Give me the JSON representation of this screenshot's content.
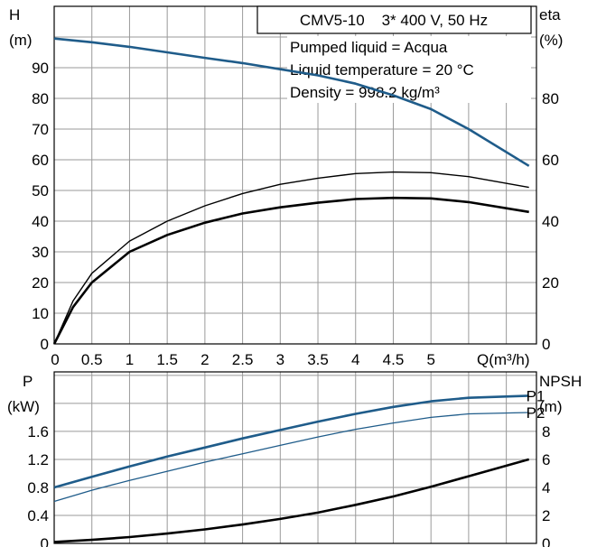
{
  "chart_data": [
    {
      "type": "line",
      "title": "CMV5-10    3* 400 V, 50 Hz",
      "info": [
        "Pumped liquid = Acqua",
        "Liquid temperature = 20 °C",
        "Density = 998.2 kg/m³"
      ],
      "xlabel": "Q(m³/h)",
      "ylabel_left": [
        "H",
        "(m)"
      ],
      "ylabel_right": [
        "eta",
        "(%)"
      ],
      "xlim": [
        0,
        6.4
      ],
      "ylim": [
        0,
        110
      ],
      "ylim_right": [
        0,
        110
      ],
      "x_ticks": [
        "0",
        "0.5",
        "1",
        "1.5",
        "2",
        "2.5",
        "3",
        "3.5",
        "4",
        "4.5",
        "5"
      ],
      "x_tick_values": [
        0,
        0.5,
        1,
        1.5,
        2,
        2.5,
        3,
        3.5,
        4,
        4.5,
        5
      ],
      "y_ticks": [
        0,
        10,
        20,
        30,
        40,
        50,
        60,
        70,
        80,
        90
      ],
      "y_ticks_right": [
        0,
        20,
        40,
        60,
        80
      ],
      "series": [
        {
          "name": "H",
          "axis": "left",
          "color": "#1f5c8a",
          "x": [
            0,
            0.5,
            1,
            1.5,
            2,
            2.5,
            3,
            3.5,
            4,
            4.5,
            5,
            5.5,
            6.3
          ],
          "y": [
            99.5,
            98.3,
            96.8,
            95.0,
            93.2,
            91.5,
            89.5,
            87.5,
            84.8,
            81.0,
            76.5,
            70.0,
            58.0
          ]
        },
        {
          "axis": "right",
          "color": "#000000",
          "x": [
            0,
            0.25,
            0.5,
            1,
            1.5,
            2,
            2.5,
            3,
            3.5,
            4,
            4.5,
            5,
            5.5,
            6.3
          ],
          "y": [
            0,
            14,
            23,
            33.5,
            40,
            45,
            49,
            52,
            54,
            55.5,
            56,
            55.8,
            54.5,
            51
          ]
        },
        {
          "axis": "right",
          "color": "#000000",
          "x": [
            0,
            0.25,
            0.5,
            1,
            1.5,
            2,
            2.5,
            3,
            3.5,
            4,
            4.5,
            5,
            5.5,
            6.3
          ],
          "y": [
            0,
            12,
            20,
            30,
            35.5,
            39.5,
            42.5,
            44.5,
            46,
            47.2,
            47.6,
            47.4,
            46.2,
            43
          ]
        }
      ]
    },
    {
      "type": "line",
      "ylabel_left": [
        "P",
        "(kW)"
      ],
      "ylabel_right": [
        "NPSH",
        "(m)"
      ],
      "xlim": [
        0,
        6.4
      ],
      "ylim": [
        0,
        2.45
      ],
      "ylim_right": [
        0,
        12.25
      ],
      "y_ticks": [
        "0",
        "0.4",
        "0.8",
        "1.2",
        "1.6"
      ],
      "y_tick_values": [
        0,
        0.4,
        0.8,
        1.2,
        1.6
      ],
      "y_ticks_right": [
        "0",
        "2",
        "4",
        "6",
        "8"
      ],
      "y_tick_values_right": [
        0,
        2,
        4,
        6,
        8
      ],
      "series": [
        {
          "name": "P1",
          "axis": "left",
          "color": "#1f5c8a",
          "x": [
            0,
            0.5,
            1,
            1.5,
            2,
            2.5,
            3,
            3.5,
            4,
            4.5,
            5,
            5.5,
            6.3
          ],
          "y": [
            0.8,
            0.95,
            1.1,
            1.24,
            1.37,
            1.5,
            1.62,
            1.74,
            1.85,
            1.95,
            2.03,
            2.08,
            2.11
          ]
        },
        {
          "name": "P2",
          "axis": "left",
          "color": "#1f5c8a",
          "x": [
            0,
            0.5,
            1,
            1.5,
            2,
            2.5,
            3,
            3.5,
            4,
            4.5,
            5,
            5.5,
            6.3
          ],
          "y": [
            0.6,
            0.76,
            0.9,
            1.03,
            1.16,
            1.28,
            1.4,
            1.52,
            1.63,
            1.72,
            1.8,
            1.85,
            1.87
          ]
        },
        {
          "axis": "right",
          "color": "#000000",
          "x": [
            0,
            0.5,
            1,
            1.5,
            2,
            2.5,
            3,
            3.5,
            4,
            4.5,
            5,
            5.5,
            6.3
          ],
          "y": [
            0.1,
            0.25,
            0.45,
            0.7,
            1.0,
            1.35,
            1.75,
            2.2,
            2.75,
            3.35,
            4.05,
            4.8,
            6.0
          ]
        }
      ]
    }
  ]
}
